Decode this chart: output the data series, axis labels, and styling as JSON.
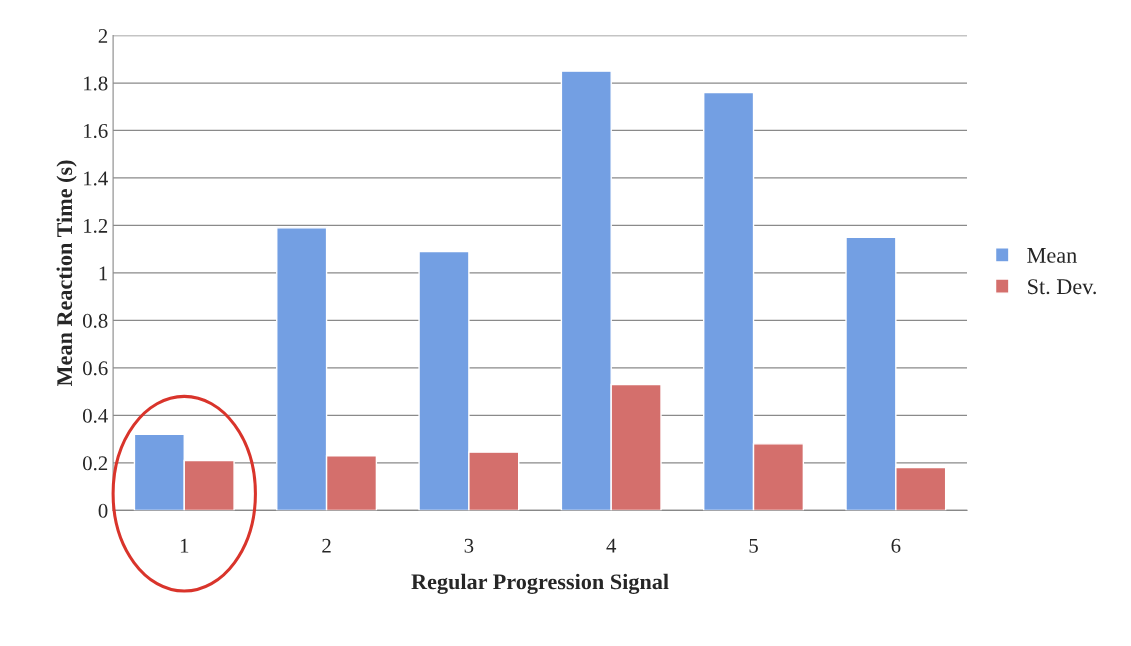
{
  "chart_data": {
    "type": "bar",
    "xlabel": "Regular Progression Signal",
    "ylabel": "Mean Reaction Time (s)",
    "categories": [
      "1",
      "2",
      "3",
      "4",
      "5",
      "6"
    ],
    "series": [
      {
        "name": "Mean",
        "color": "#739fe3",
        "values": [
          0.32,
          1.19,
          1.09,
          1.85,
          1.76,
          1.15
        ]
      },
      {
        "name": "St. Dev.",
        "color": "#d46f6c",
        "values": [
          0.21,
          0.23,
          0.245,
          0.53,
          0.28,
          0.18
        ]
      }
    ],
    "ylim": [
      0,
      2
    ],
    "yticks": [
      0,
      0.2,
      0.4,
      0.6,
      0.8,
      1,
      1.2,
      1.4,
      1.6,
      1.8,
      2
    ],
    "grid": "y",
    "legend": "right"
  }
}
